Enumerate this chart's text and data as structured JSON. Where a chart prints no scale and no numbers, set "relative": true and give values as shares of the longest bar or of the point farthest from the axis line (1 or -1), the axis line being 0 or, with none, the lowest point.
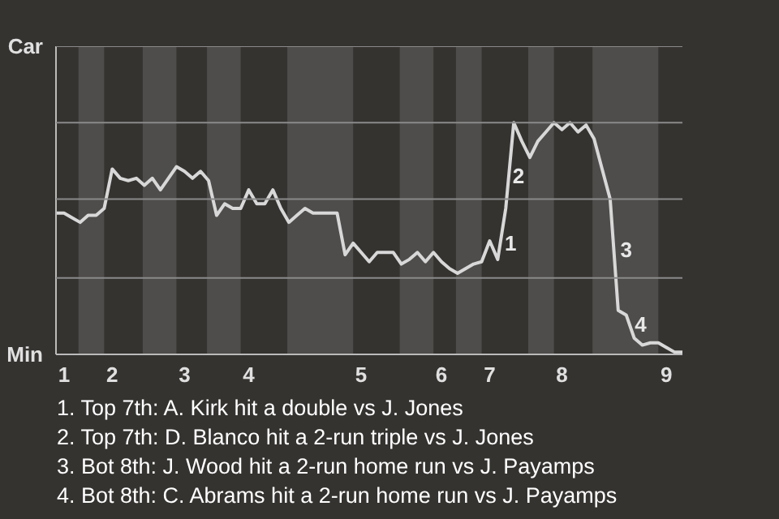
{
  "chart_data": {
    "type": "line",
    "relative": true,
    "categories": [
      null,
      "1",
      null,
      null,
      null,
      null,
      null,
      "2",
      null,
      null,
      null,
      null,
      null,
      null,
      null,
      null,
      "3",
      null,
      null,
      null,
      null,
      null,
      null,
      null,
      "4",
      null,
      null,
      null,
      null,
      null,
      null,
      null,
      null,
      null,
      null,
      null,
      null,
      null,
      "5",
      null,
      null,
      null,
      null,
      null,
      null,
      null,
      null,
      null,
      "6",
      null,
      null,
      null,
      null,
      null,
      "7",
      null,
      null,
      null,
      null,
      null,
      null,
      null,
      null,
      "8",
      null,
      null,
      null,
      null,
      null,
      null,
      null,
      null,
      null,
      null,
      null,
      null,
      "9",
      null,
      null
    ],
    "series": [
      {
        "color": "#d8d8d8",
        "values": [
          0.61,
          0.61,
          0.59,
          0.57,
          0.6,
          0.6,
          0.63,
          0.8,
          0.76,
          0.75,
          0.76,
          0.73,
          0.76,
          0.71,
          0.76,
          0.81,
          0.79,
          0.76,
          0.79,
          0.75,
          0.6,
          0.65,
          0.63,
          0.63,
          0.71,
          0.65,
          0.65,
          0.71,
          0.63,
          0.57,
          0.6,
          0.63,
          0.61,
          0.61,
          0.61,
          0.61,
          0.43,
          0.48,
          0.44,
          0.4,
          0.44,
          0.44,
          0.44,
          0.39,
          0.41,
          0.44,
          0.4,
          0.44,
          0.4,
          0.37,
          0.35,
          0.37,
          0.39,
          0.4,
          0.49,
          0.41,
          0.63,
          1,
          0.92,
          0.85,
          0.92,
          0.96,
          1,
          0.97,
          1,
          0.96,
          0.99,
          0.93,
          0.8,
          0.67,
          0.19,
          0.17,
          0.07,
          0.04,
          0.05,
          0.05,
          0.03,
          0.01,
          0.01
        ],
        "line_style": "solid"
      }
    ],
    "ref_lines": [
      {
        "axis": "y",
        "value": 0.33,
        "color": "#8a8a8a"
      },
      {
        "axis": "y",
        "value": 0.67,
        "color": "#8a8a8a"
      },
      {
        "axis": "y",
        "value": 1,
        "color": "#8a8a8a"
      },
      {
        "axis": "y",
        "value": 1.33,
        "color": "#8a8a8a"
      }
    ],
    "annotations": [
      "Car",
      "Min",
      "1",
      "2",
      "3",
      "4",
      "1. Top 7th: A. Kirk hit a double vs J. Jones",
      "2. Top 7th: D. Blanco hit a 2-run triple vs J. Jones",
      "3. Bot 8th: J. Wood hit a 2-run home run vs J. Payamps",
      "4. Bot 8th: C. Abrams hit a 2-run home run vs J. Payamps"
    ]
  }
}
